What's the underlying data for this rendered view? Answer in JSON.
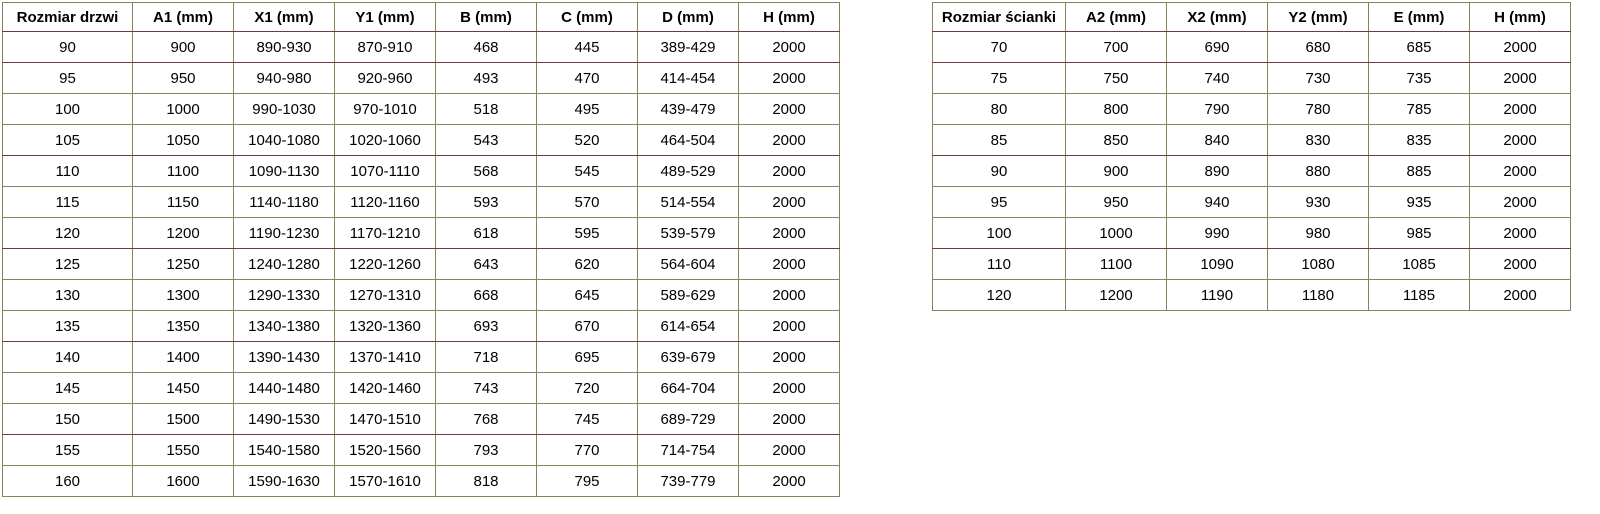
{
  "colors": {
    "border_olive": "#84835a",
    "border_maroon": "#6b3c38",
    "text": "#000000",
    "background": "#ffffff"
  },
  "tables": {
    "door": {
      "title": "Rozmiar drzwi",
      "headers": [
        "Rozmiar drzwi",
        "A1 (mm)",
        "X1 (mm)",
        "Y1 (mm)",
        "B (mm)",
        "C (mm)",
        "D (mm)",
        "H (mm)"
      ],
      "rows": [
        [
          "90",
          "900",
          "890-930",
          "870-910",
          "468",
          "445",
          "389-429",
          "2000"
        ],
        [
          "95",
          "950",
          "940-980",
          "920-960",
          "493",
          "470",
          "414-454",
          "2000"
        ],
        [
          "100",
          "1000",
          "990-1030",
          "970-1010",
          "518",
          "495",
          "439-479",
          "2000"
        ],
        [
          "105",
          "1050",
          "1040-1080",
          "1020-1060",
          "543",
          "520",
          "464-504",
          "2000"
        ],
        [
          "110",
          "1100",
          "1090-1130",
          "1070-1110",
          "568",
          "545",
          "489-529",
          "2000"
        ],
        [
          "115",
          "1150",
          "1140-1180",
          "1120-1160",
          "593",
          "570",
          "514-554",
          "2000"
        ],
        [
          "120",
          "1200",
          "1190-1230",
          "1170-1210",
          "618",
          "595",
          "539-579",
          "2000"
        ],
        [
          "125",
          "1250",
          "1240-1280",
          "1220-1260",
          "643",
          "620",
          "564-604",
          "2000"
        ],
        [
          "130",
          "1300",
          "1290-1330",
          "1270-1310",
          "668",
          "645",
          "589-629",
          "2000"
        ],
        [
          "135",
          "1350",
          "1340-1380",
          "1320-1360",
          "693",
          "670",
          "614-654",
          "2000"
        ],
        [
          "140",
          "1400",
          "1390-1430",
          "1370-1410",
          "718",
          "695",
          "639-679",
          "2000"
        ],
        [
          "145",
          "1450",
          "1440-1480",
          "1420-1460",
          "743",
          "720",
          "664-704",
          "2000"
        ],
        [
          "150",
          "1500",
          "1490-1530",
          "1470-1510",
          "768",
          "745",
          "689-729",
          "2000"
        ],
        [
          "155",
          "1550",
          "1540-1580",
          "1520-1560",
          "793",
          "770",
          "714-754",
          "2000"
        ],
        [
          "160",
          "1600",
          "1590-1630",
          "1570-1610",
          "818",
          "795",
          "739-779",
          "2000"
        ]
      ]
    },
    "wall": {
      "title": "Rozmiar ścianki",
      "headers": [
        "Rozmiar ścianki",
        "A2 (mm)",
        "X2 (mm)",
        "Y2 (mm)",
        "E (mm)",
        "H (mm)"
      ],
      "rows": [
        [
          "70",
          "700",
          "690",
          "680",
          "685",
          "2000"
        ],
        [
          "75",
          "750",
          "740",
          "730",
          "735",
          "2000"
        ],
        [
          "80",
          "800",
          "790",
          "780",
          "785",
          "2000"
        ],
        [
          "85",
          "850",
          "840",
          "830",
          "835",
          "2000"
        ],
        [
          "90",
          "900",
          "890",
          "880",
          "885",
          "2000"
        ],
        [
          "95",
          "950",
          "940",
          "930",
          "935",
          "2000"
        ],
        [
          "100",
          "1000",
          "990",
          "980",
          "985",
          "2000"
        ],
        [
          "110",
          "1100",
          "1090",
          "1080",
          "1085",
          "2000"
        ],
        [
          "120",
          "1200",
          "1190",
          "1180",
          "1185",
          "2000"
        ]
      ]
    }
  }
}
